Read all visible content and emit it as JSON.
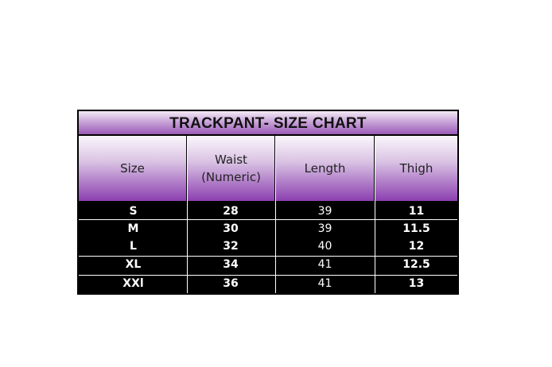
{
  "title": "TRACKPANT- SIZE CHART",
  "headers": [
    "Size",
    "Waist\n(Numeric)",
    "Length",
    "Thigh"
  ],
  "header_waist_line1": "Waist",
  "header_waist_line2": "(Numeric)",
  "rows": [
    [
      "S",
      "28",
      "39",
      "11"
    ],
    [
      "M",
      "30",
      "39",
      "11.5"
    ],
    [
      "L",
      "32",
      "40",
      "12"
    ],
    [
      "XL",
      "34",
      "41",
      "12.5"
    ],
    [
      "XXl",
      "36",
      "41",
      "13"
    ]
  ],
  "colors": {
    "header_purple": "#8b3fb0",
    "body": "#000000"
  }
}
